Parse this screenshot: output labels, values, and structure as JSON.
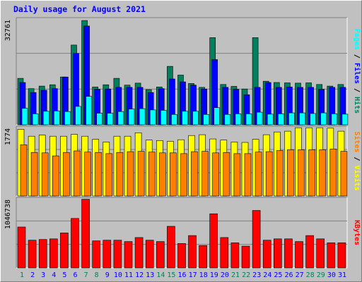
{
  "chart_data": {
    "type": "bar",
    "title": "Daily usage for August 2021",
    "categories": [
      "1",
      "2",
      "3",
      "4",
      "5",
      "6",
      "7",
      "8",
      "9",
      "10",
      "11",
      "12",
      "13",
      "14",
      "15",
      "16",
      "17",
      "18",
      "19",
      "20",
      "21",
      "22",
      "23",
      "24",
      "25",
      "26",
      "27",
      "28",
      "29",
      "30",
      "31"
    ],
    "weekend_days": [
      1,
      7,
      8,
      14,
      15,
      21,
      22,
      28,
      29
    ],
    "panels": [
      {
        "name": "hits-files-pages",
        "axis_label": "32761",
        "ylim": [
          0,
          32761
        ],
        "right_label": [
          "Pages",
          "Files",
          "Hits"
        ],
        "series": [
          {
            "name": "Hits",
            "color": "#00805c",
            "values": [
              14400,
              11200,
              12000,
              12400,
              14800,
              24700,
              32300,
              11700,
              12400,
              14400,
              12300,
              12900,
              10900,
              11700,
              18100,
              15400,
              12800,
              11600,
              27000,
              12500,
              11900,
              11100,
              27000,
              13500,
              13100,
              13000,
              12900,
              13000,
              12500,
              12000,
              12500
            ]
          },
          {
            "name": "Files",
            "color": "#0000ff",
            "values": [
              13100,
              10000,
              10700,
              11200,
              14800,
              22100,
              30600,
              11000,
              11100,
              11600,
              11600,
              11600,
              10000,
              11200,
              14200,
              13300,
              12300,
              11100,
              20200,
              11600,
              11000,
              9300,
              11600,
              13100,
              11600,
              11700,
              11600,
              11600,
              11000,
              11600,
              11600
            ]
          },
          {
            "name": "Pages",
            "color": "#00ffff",
            "values": [
              5100,
              3400,
              4200,
              4300,
              4100,
              5700,
              8800,
              3600,
              3600,
              4100,
              4900,
              5000,
              4600,
              4500,
              3200,
              4200,
              4200,
              3200,
              5300,
              3200,
              3400,
              3400,
              3900,
              3300,
              3400,
              3700,
              3700,
              3500,
              3700,
              3400,
              3300
            ]
          }
        ]
      },
      {
        "name": "visits-sites",
        "axis_label": "1774",
        "ylim": [
          0,
          1774
        ],
        "right_label": [
          "Sites",
          "Visits"
        ],
        "series": [
          {
            "name": "Visits",
            "color": "#ffff00",
            "values": [
              1730,
              1550,
              1580,
              1550,
              1550,
              1600,
              1550,
              1470,
              1400,
              1550,
              1550,
              1640,
              1450,
              1440,
              1420,
              1460,
              1570,
              1590,
              1480,
              1450,
              1400,
              1390,
              1470,
              1590,
              1660,
              1680,
              1770,
              1770,
              1770,
              1760,
              1680
            ]
          },
          {
            "name": "Sites",
            "color": "#ff8000",
            "values": [
              1330,
              1130,
              1120,
              1040,
              1130,
              1170,
              1140,
              1130,
              1100,
              1130,
              1150,
              1160,
              1140,
              1120,
              1120,
              1100,
              1150,
              1160,
              1120,
              1130,
              1100,
              1100,
              1140,
              1150,
              1180,
              1200,
              1200,
              1200,
              1200,
              1220,
              1160
            ]
          }
        ]
      },
      {
        "name": "kbytes",
        "axis_label": "1046738",
        "ylim": [
          0,
          1046738
        ],
        "right_label": [
          "KBytes"
        ],
        "series": [
          {
            "name": "KBytes",
            "color": "#ff0000",
            "values": [
              620000,
              420000,
              430000,
              440000,
              530000,
              750000,
              1040000,
              410000,
              420000,
              420000,
              400000,
              460000,
              420000,
              400000,
              630000,
              370000,
              490000,
              340000,
              820000,
              460000,
              380000,
              330000,
              870000,
              420000,
              440000,
              440000,
              400000,
              490000,
              440000,
              380000,
              380000
            ]
          }
        ]
      }
    ]
  },
  "colors": {
    "background": "#c0c0c0",
    "plot_background": "#c0c0c0",
    "grid": "#808080",
    "title": "#0000ff",
    "weekday_label": "#0000ff",
    "weekend_label": "#00805c"
  }
}
